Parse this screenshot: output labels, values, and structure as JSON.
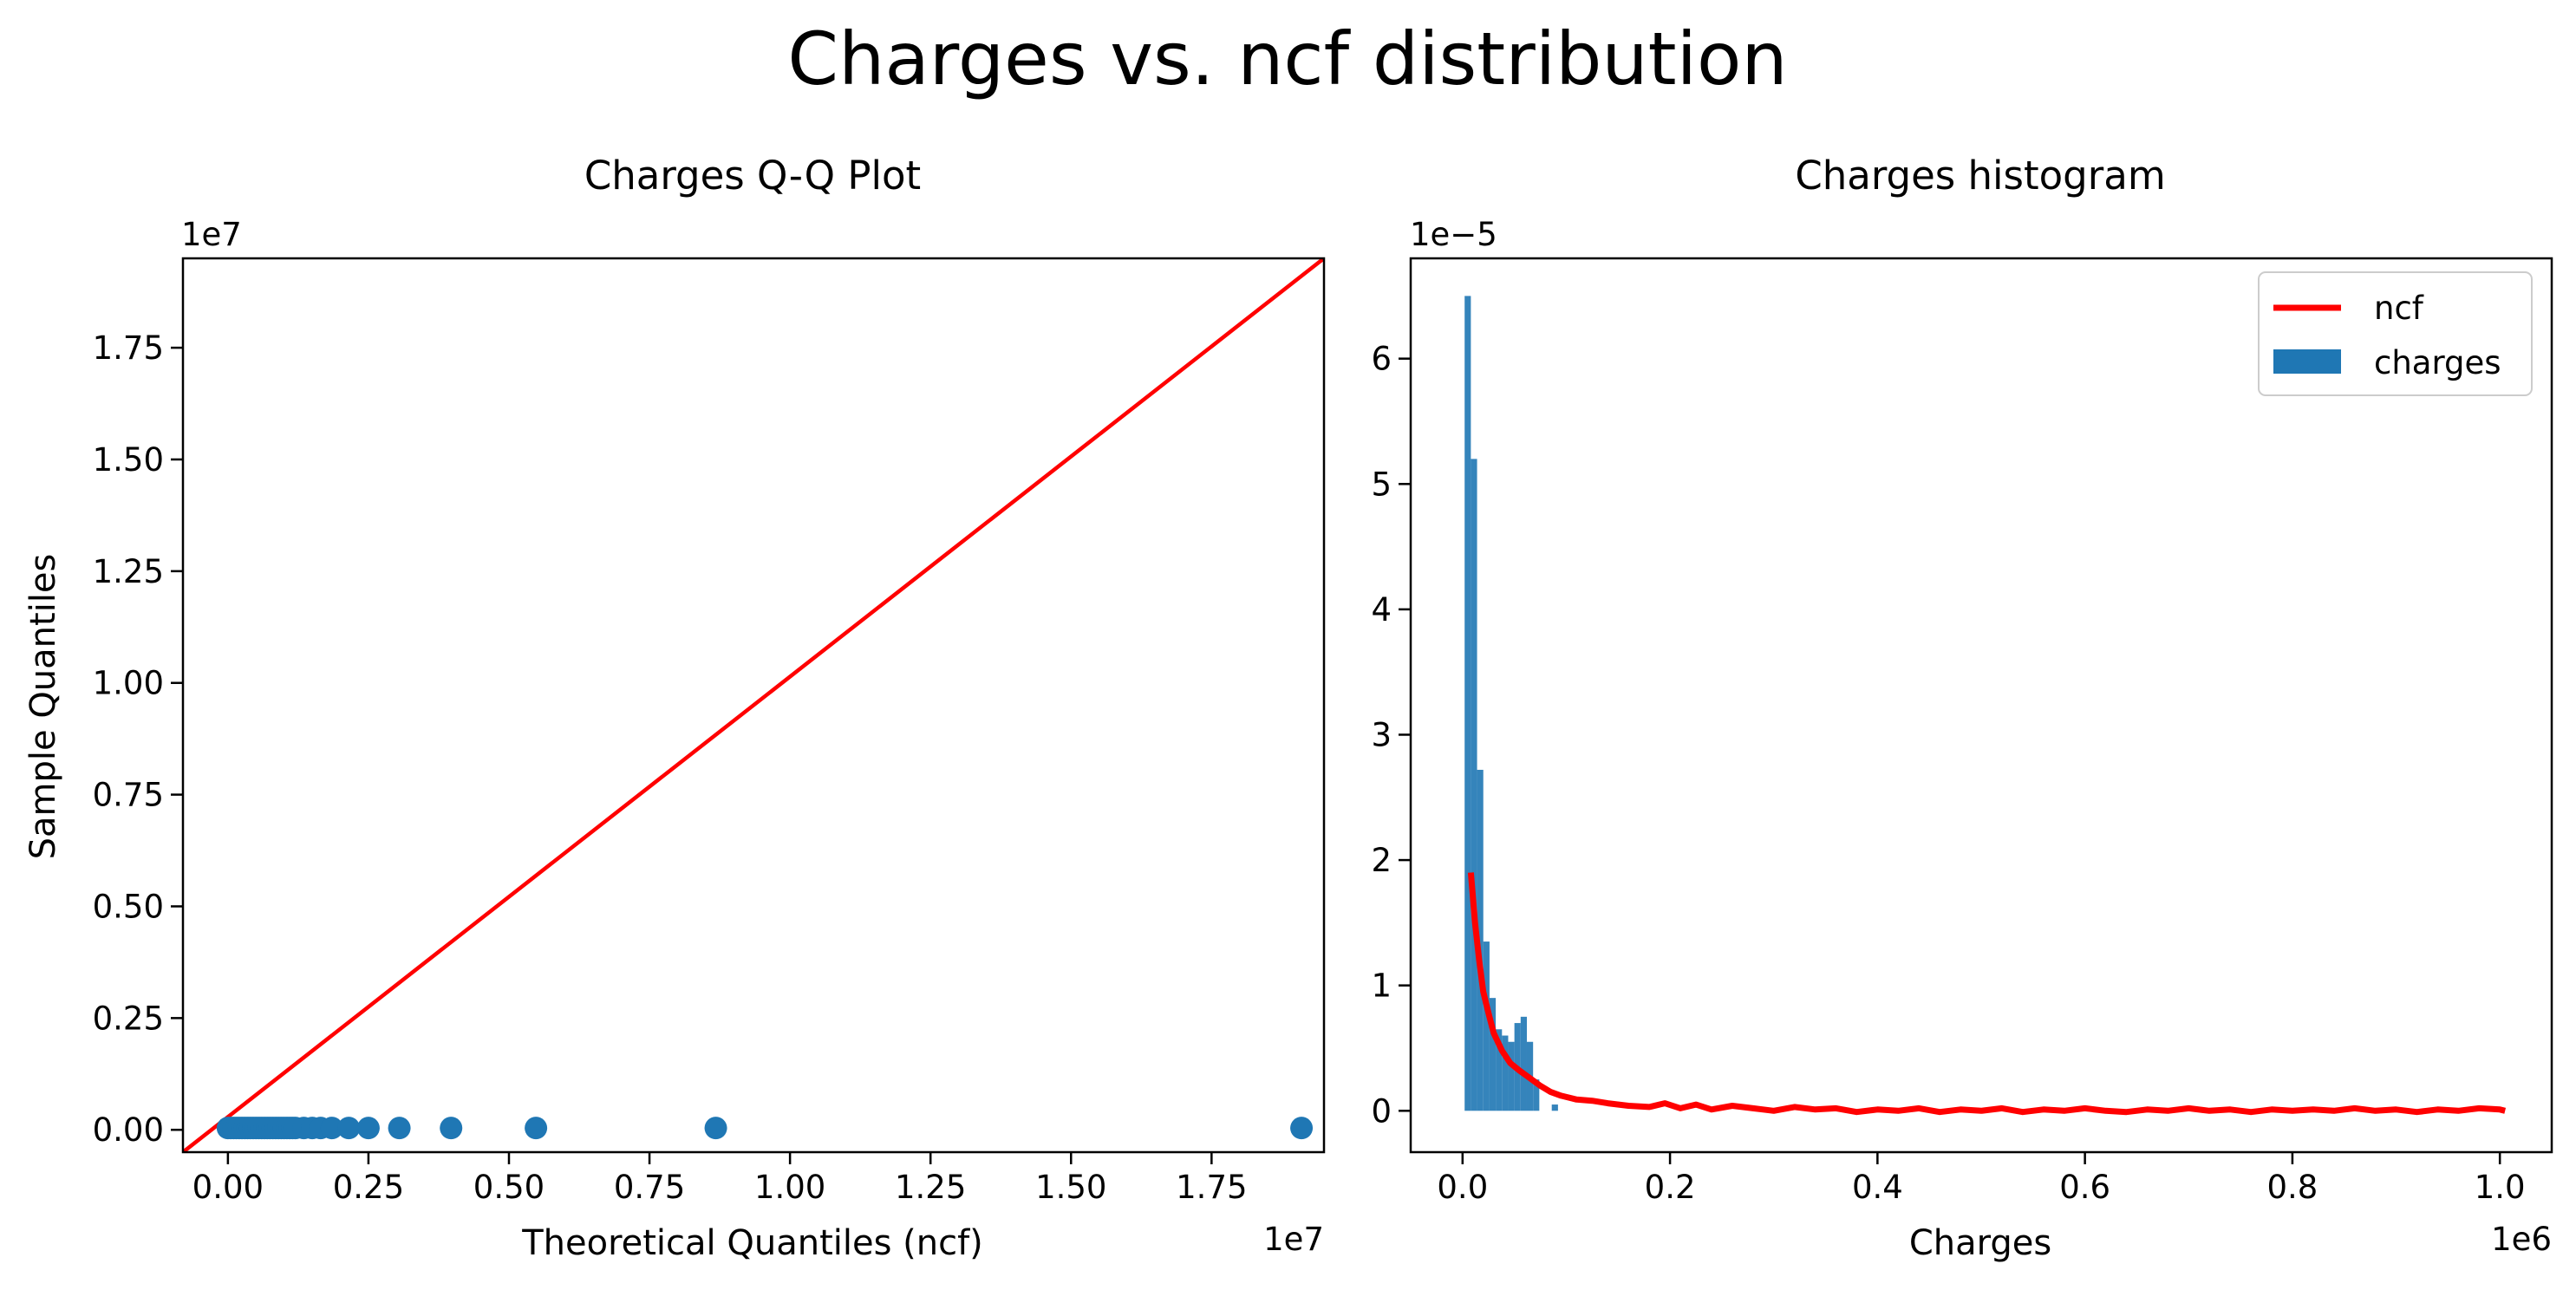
{
  "title": "Charges vs. ncf distribution",
  "chart_data": [
    {
      "type": "scatter",
      "title": "Charges Q-Q Plot",
      "xlabel": "Theoretical Quantiles (ncf)",
      "ylabel": "Sample Quantiles",
      "x_offset_text": "1e7",
      "y_offset_text": "1e7",
      "x_ticks": [
        "0.00",
        "0.25",
        "0.50",
        "0.75",
        "1.00",
        "1.25",
        "1.50",
        "1.75"
      ],
      "y_ticks": [
        "0.00",
        "0.25",
        "0.50",
        "0.75",
        "1.00",
        "1.25",
        "1.50",
        "1.75"
      ],
      "x_tick_values": [
        0,
        2500000,
        5000000,
        7500000,
        10000000,
        12500000,
        15000000,
        17500000
      ],
      "y_tick_values": [
        0,
        2500000,
        5000000,
        7500000,
        10000000,
        12500000,
        15000000,
        17500000
      ],
      "xlim": [
        -800000,
        19500000
      ],
      "ylim": [
        -500000,
        19500000
      ],
      "points": [
        [
          0,
          40000
        ],
        [
          50000,
          40000
        ],
        [
          100000,
          40000
        ],
        [
          150000,
          40000
        ],
        [
          200000,
          40000
        ],
        [
          250000,
          40000
        ],
        [
          300000,
          40000
        ],
        [
          350000,
          40000
        ],
        [
          400000,
          40000
        ],
        [
          450000,
          40000
        ],
        [
          500000,
          40000
        ],
        [
          550000,
          40000
        ],
        [
          600000,
          40000
        ],
        [
          650000,
          40000
        ],
        [
          700000,
          40000
        ],
        [
          750000,
          40000
        ],
        [
          800000,
          40000
        ],
        [
          850000,
          40000
        ],
        [
          900000,
          40000
        ],
        [
          950000,
          40000
        ],
        [
          1000000,
          40000
        ],
        [
          1050000,
          40000
        ],
        [
          1100000,
          40000
        ],
        [
          1150000,
          40000
        ],
        [
          1200000,
          40000
        ],
        [
          1350000,
          40000
        ],
        [
          1500000,
          40000
        ],
        [
          1650000,
          40000
        ],
        [
          1850000,
          40000
        ],
        [
          2150000,
          40000
        ],
        [
          2500000,
          40000
        ],
        [
          3050000,
          40000
        ],
        [
          3970000,
          40000
        ],
        [
          5480000,
          40000
        ],
        [
          8680000,
          40000
        ],
        [
          19100000,
          40000
        ]
      ],
      "reference_line": [
        [
          -800000,
          -500000
        ],
        [
          19500000,
          19500000
        ]
      ],
      "colors": {
        "points": "#1f77b4",
        "line": "#ff0000"
      }
    },
    {
      "type": "bar",
      "title": "Charges histogram",
      "xlabel": "Charges",
      "ylabel": "",
      "x_offset_text": "1e6",
      "y_offset_text": "1e−5",
      "x_ticks": [
        "0.0",
        "0.2",
        "0.4",
        "0.6",
        "0.8",
        "1.0"
      ],
      "y_ticks": [
        "0",
        "1",
        "2",
        "3",
        "4",
        "5",
        "6"
      ],
      "x_tick_values": [
        0,
        200000,
        400000,
        600000,
        800000,
        1000000
      ],
      "y_tick_values": [
        0,
        1,
        2,
        3,
        4,
        5,
        6
      ],
      "xlim": [
        -50000,
        1050000
      ],
      "ylim": [
        -0.33,
        6.8
      ],
      "bin_width": 6000,
      "bins": [
        [
          2000,
          6.5
        ],
        [
          8000,
          5.2
        ],
        [
          14000,
          2.72
        ],
        [
          20000,
          1.35
        ],
        [
          26000,
          0.9
        ],
        [
          32000,
          0.65
        ],
        [
          38000,
          0.6
        ],
        [
          44000,
          0.55
        ],
        [
          50000,
          0.7
        ],
        [
          56000,
          0.75
        ],
        [
          62000,
          0.55
        ],
        [
          68000,
          0.25
        ],
        [
          86000,
          0.05
        ]
      ],
      "series": [
        {
          "name": "ncf",
          "color": "#ff0000",
          "points": [
            [
              8000,
              1.9
            ],
            [
              12000,
              1.5
            ],
            [
              16000,
              1.2
            ],
            [
              20000,
              0.95
            ],
            [
              25000,
              0.78
            ],
            [
              30000,
              0.62
            ],
            [
              38000,
              0.48
            ],
            [
              46000,
              0.38
            ],
            [
              55000,
              0.32
            ],
            [
              65000,
              0.26
            ],
            [
              75000,
              0.2
            ],
            [
              85000,
              0.15
            ],
            [
              95000,
              0.12
            ],
            [
              110000,
              0.09
            ],
            [
              125000,
              0.08
            ],
            [
              140000,
              0.06
            ],
            [
              160000,
              0.04
            ],
            [
              180000,
              0.03
            ],
            [
              195000,
              0.06
            ],
            [
              210000,
              0.02
            ],
            [
              225000,
              0.05
            ],
            [
              240000,
              0.01
            ],
            [
              260000,
              0.04
            ],
            [
              280000,
              0.02
            ],
            [
              300000,
              0.0
            ],
            [
              320000,
              0.03
            ],
            [
              340000,
              0.01
            ],
            [
              360000,
              0.02
            ],
            [
              380000,
              -0.01
            ],
            [
              400000,
              0.01
            ],
            [
              420000,
              0.0
            ],
            [
              440000,
              0.02
            ],
            [
              460000,
              -0.01
            ],
            [
              480000,
              0.01
            ],
            [
              500000,
              0.0
            ],
            [
              520000,
              0.02
            ],
            [
              540000,
              -0.01
            ],
            [
              560000,
              0.01
            ],
            [
              580000,
              0.0
            ],
            [
              600000,
              0.02
            ],
            [
              620000,
              0.0
            ],
            [
              640000,
              -0.01
            ],
            [
              660000,
              0.01
            ],
            [
              680000,
              0.0
            ],
            [
              700000,
              0.02
            ],
            [
              720000,
              0.0
            ],
            [
              740000,
              0.01
            ],
            [
              760000,
              -0.01
            ],
            [
              780000,
              0.01
            ],
            [
              800000,
              0.0
            ],
            [
              820000,
              0.01
            ],
            [
              840000,
              0.0
            ],
            [
              860000,
              0.02
            ],
            [
              880000,
              0.0
            ],
            [
              900000,
              0.01
            ],
            [
              920000,
              -0.01
            ],
            [
              940000,
              0.01
            ],
            [
              960000,
              0.0
            ],
            [
              980000,
              0.02
            ],
            [
              1000000,
              0.01
            ],
            [
              1005000,
              0.0
            ]
          ]
        },
        {
          "name": "charges",
          "color": "#1f77b4"
        }
      ],
      "legend_position": "top-right"
    }
  ]
}
